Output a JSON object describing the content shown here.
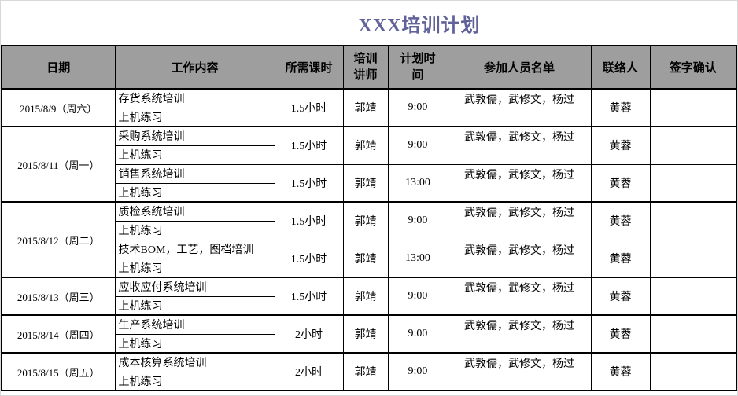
{
  "title": "XXX培训计划",
  "colors": {
    "title_text": "#62629b",
    "header_bg": "#9e9e9e",
    "border": "#000000",
    "page_bg": "#ffffff"
  },
  "table": {
    "headers": [
      "日期",
      "工作内容",
      "所需课时",
      "培训讲师",
      "计划时间",
      "参加人员名单",
      "联络人",
      "签字确认"
    ],
    "groups": [
      {
        "date": "2015/8/9（周六）",
        "sessions": [
          {
            "training": "存货系统培训",
            "practice": "上机练习",
            "hours": "1.5小时",
            "lecturer": "郭靖",
            "time": "9:00",
            "participants": "武敦儒，武修文，杨过",
            "contact": "黄蓉",
            "signature": ""
          }
        ]
      },
      {
        "date": "2015/8/11（周一）",
        "sessions": [
          {
            "training": "采购系统培训",
            "practice": "上机练习",
            "hours": "1.5小时",
            "lecturer": "郭靖",
            "time": "9:00",
            "participants": "武敦儒，武修文，杨过",
            "contact": "黄蓉",
            "signature": ""
          },
          {
            "training": "销售系统培训",
            "practice": "上机练习",
            "hours": "1.5小时",
            "lecturer": "郭靖",
            "time": "13:00",
            "participants": "武敦儒，武修文，杨过",
            "contact": "黄蓉",
            "signature": ""
          }
        ]
      },
      {
        "date": "2015/8/12（周二）",
        "sessions": [
          {
            "training": "质检系统培训",
            "practice": "上机练习",
            "hours": "1.5小时",
            "lecturer": "郭靖",
            "time": "9:00",
            "participants": "武敦儒，武修文，杨过",
            "contact": "黄蓉",
            "signature": ""
          },
          {
            "training": "技术BOM，工艺，图档培训",
            "practice": "上机练习",
            "hours": "1.5小时",
            "lecturer": "郭靖",
            "time": "13:00",
            "participants": "武敦儒，武修文，杨过",
            "contact": "黄蓉",
            "signature": ""
          }
        ]
      },
      {
        "date": "2015/8/13（周三）",
        "sessions": [
          {
            "training": "应收应付系统培训",
            "practice": "上机练习",
            "hours": "1.5小时",
            "lecturer": "郭靖",
            "time": "9:00",
            "participants": "武敦儒，武修文，杨过",
            "contact": "黄蓉",
            "signature": ""
          }
        ]
      },
      {
        "date": "2015/8/14（周四）",
        "sessions": [
          {
            "training": "生产系统培训",
            "practice": "上机练习",
            "hours": "2小时",
            "lecturer": "郭靖",
            "time": "9:00",
            "participants": "武敦儒，武修文，杨过",
            "contact": "黄蓉",
            "signature": ""
          }
        ]
      },
      {
        "date": "2015/8/15（周五）",
        "sessions": [
          {
            "training": "成本核算系统培训",
            "practice": "上机练习",
            "hours": "2小时",
            "lecturer": "郭靖",
            "time": "9:00",
            "participants": "武敦儒，武修文，杨过",
            "contact": "黄蓉",
            "signature": ""
          }
        ]
      }
    ]
  }
}
